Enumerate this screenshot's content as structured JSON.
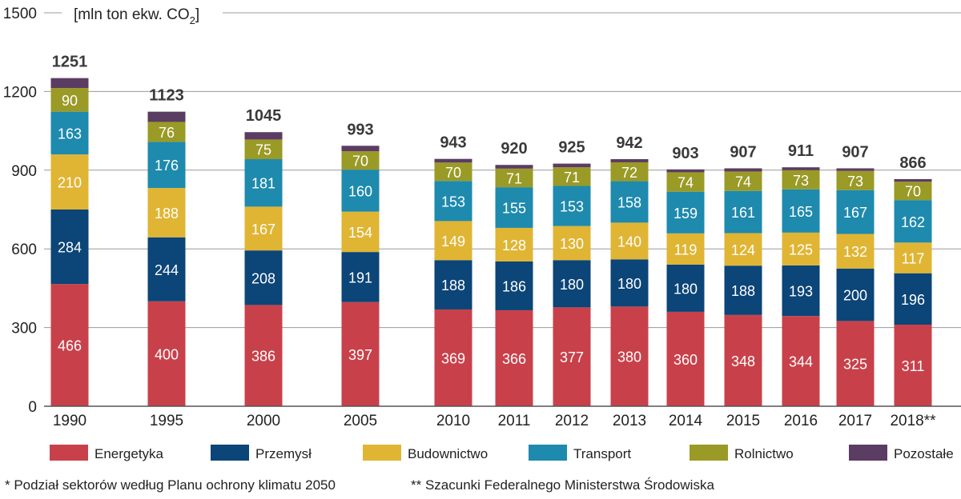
{
  "chart_data": {
    "type": "bar",
    "stacked": true,
    "unit_prefix": "[mln ton ekw. CO",
    "unit_sub": "2",
    "unit_suffix": "]",
    "ylim": [
      0,
      1500
    ],
    "yticks": [
      0,
      300,
      600,
      900,
      1200,
      1500
    ],
    "grid": true,
    "categories": [
      "1990",
      "1995",
      "2000",
      "2005",
      "2010",
      "2011",
      "2012",
      "2013",
      "2014",
      "2015",
      "2016",
      "2017",
      "2018**"
    ],
    "series": [
      {
        "name": "Energetyka",
        "color": "#c8414a",
        "values": [
          466,
          400,
          386,
          397,
          369,
          366,
          377,
          380,
          360,
          348,
          344,
          325,
          311
        ]
      },
      {
        "name": "Przemysł",
        "color": "#0c4577",
        "values": [
          284,
          244,
          208,
          191,
          188,
          186,
          180,
          180,
          180,
          188,
          193,
          200,
          196
        ]
      },
      {
        "name": "Budownictwo",
        "color": "#e0b534",
        "values": [
          210,
          188,
          167,
          154,
          149,
          128,
          130,
          140,
          119,
          124,
          125,
          132,
          117
        ]
      },
      {
        "name": "Transport",
        "color": "#1e8aad",
        "values": [
          163,
          176,
          181,
          160,
          153,
          155,
          153,
          158,
          159,
          161,
          165,
          167,
          162
        ]
      },
      {
        "name": "Rolnictwo",
        "color": "#9a9a26",
        "values": [
          90,
          76,
          75,
          70,
          70,
          71,
          71,
          72,
          74,
          74,
          73,
          73,
          70
        ]
      },
      {
        "name": "Pozostałe",
        "color": "#5b3c62",
        "values": [
          38,
          39,
          28,
          21,
          14,
          14,
          14,
          12,
          11,
          12,
          11,
          10,
          10
        ]
      }
    ],
    "totals": [
      1251,
      1123,
      1045,
      993,
      943,
      920,
      925,
      942,
      903,
      907,
      911,
      907,
      866
    ],
    "legend_position": "bottom"
  },
  "footnotes": {
    "left": "* Podział sektorów według Planu ochrony klimatu 2050",
    "right": "** Szacunki Federalnego Ministerstwa Środowiska"
  }
}
